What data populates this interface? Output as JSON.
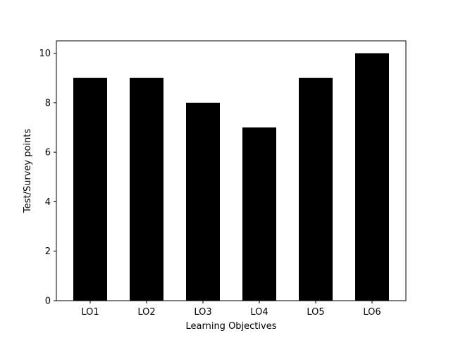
{
  "chart_data": {
    "type": "bar",
    "title": "",
    "xlabel": "Learning Objectives",
    "ylabel": "Test/Survey points",
    "categories": [
      "LO1",
      "LO2",
      "LO3",
      "LO4",
      "LO5",
      "LO6"
    ],
    "values": [
      9,
      9,
      8,
      7,
      9,
      10
    ],
    "ylim": [
      0,
      10.5
    ],
    "yticks": [
      0,
      2,
      4,
      6,
      8,
      10
    ],
    "grid": false,
    "bar_color": "#000000"
  }
}
